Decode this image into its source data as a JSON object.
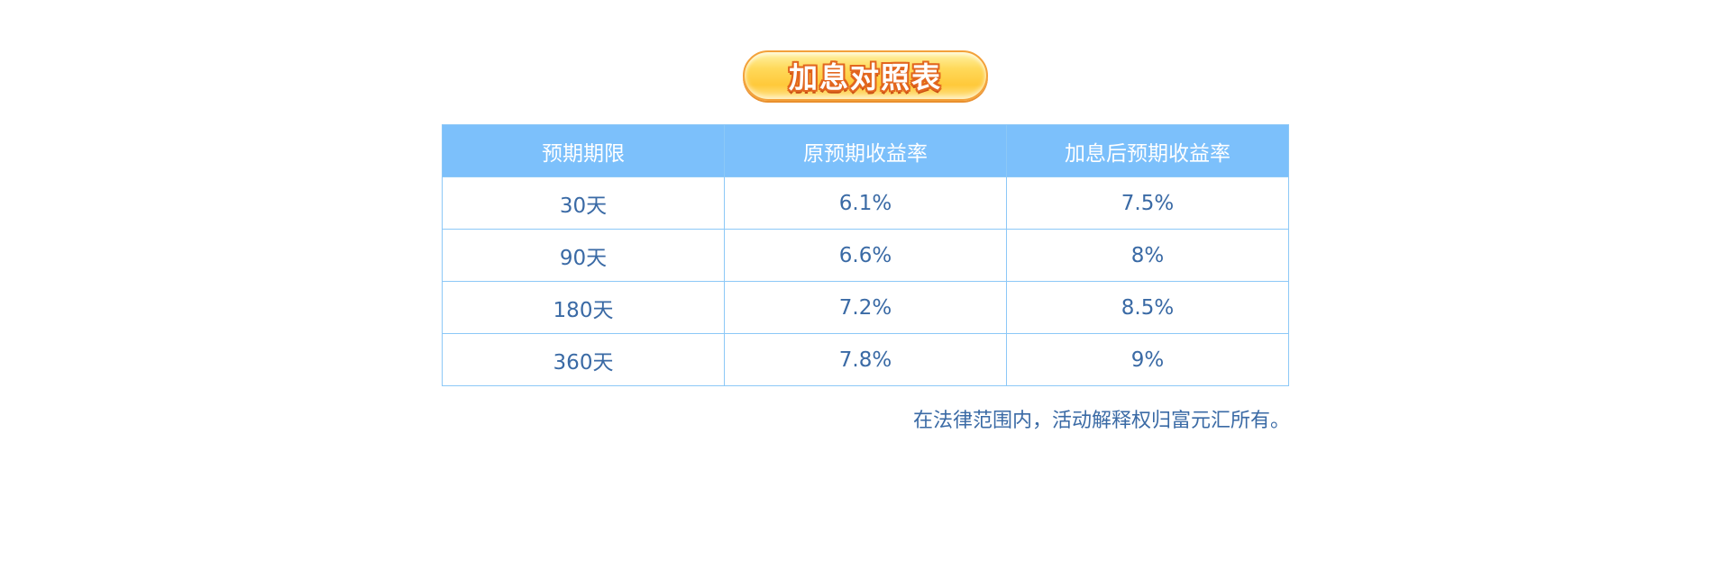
{
  "title": "加息对照表",
  "table": {
    "headers": [
      "预期期限",
      "原预期收益率",
      "加息后预期收益率"
    ],
    "rows": [
      [
        "30天",
        "6.1%",
        "7.5%"
      ],
      [
        "90天",
        "6.6%",
        "8%"
      ],
      [
        "180天",
        "7.2%",
        "8.5%"
      ],
      [
        "360天",
        "7.8%",
        "9%"
      ]
    ]
  },
  "footnote": "在法律范围内，活动解释权归富元汇所有。",
  "colors": {
    "header_bg": "#7cc0fb",
    "cell_text": "#3a6aa5",
    "border": "#8cc8f7",
    "badge_fill": "#ffd95a",
    "badge_outline": "#e2661e"
  }
}
